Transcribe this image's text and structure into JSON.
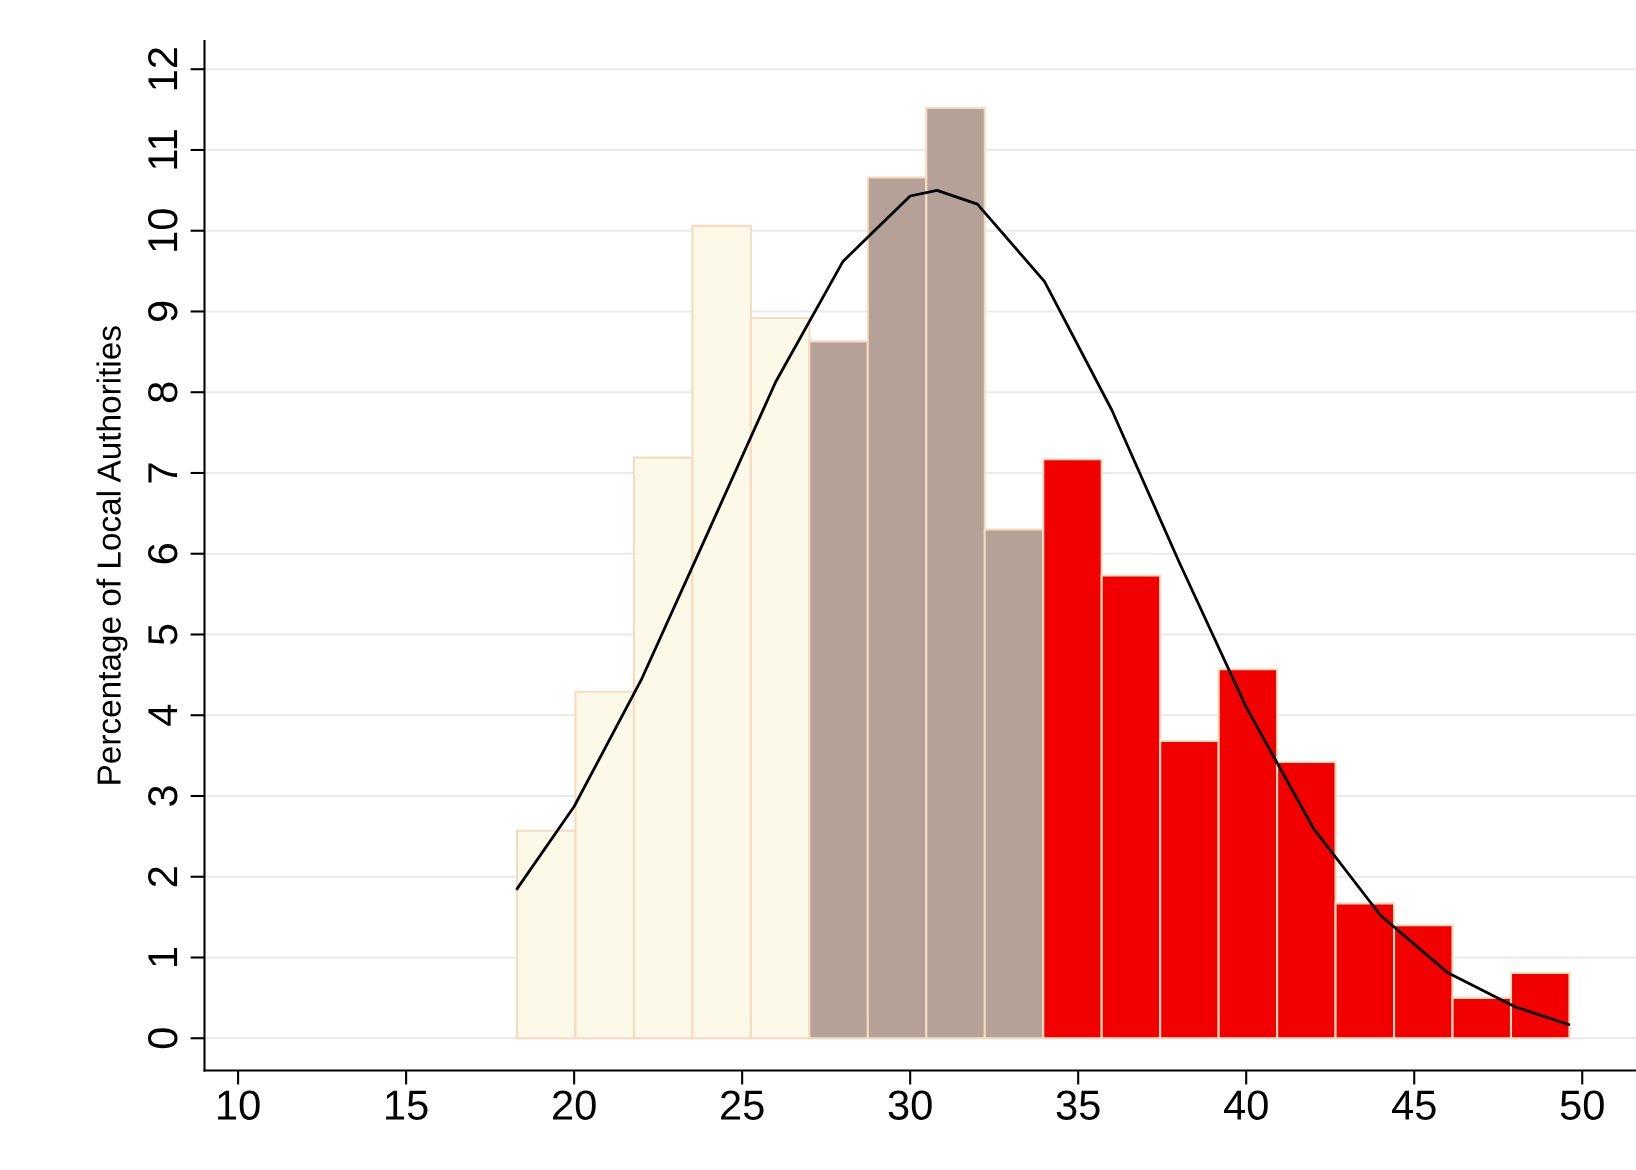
{
  "chart_data": {
    "type": "histogram",
    "ylabel": "Percentage of Local Authorities",
    "bins": [
      18.3,
      20.04,
      21.78,
      23.52,
      25.26,
      27.0,
      28.74,
      30.48,
      32.22,
      33.96,
      35.7,
      37.44,
      39.18,
      40.92,
      42.66,
      44.4,
      46.14,
      47.88,
      49.62
    ],
    "series": [
      {
        "values": [
          2.57,
          4.29,
          7.19,
          10.06,
          8.92,
          8.63,
          10.66,
          11.52,
          6.3,
          7.17,
          5.73,
          3.68,
          4.57,
          3.42,
          1.67,
          1.4,
          0.5,
          0.81
        ],
        "colors": [
          "#fdf9e8",
          "#fdf9e8",
          "#fdf9e8",
          "#fdf9e8",
          "#fdf9e8",
          "#b5a197",
          "#b5a197",
          "#b5a197",
          "#b5a197",
          "#f20000",
          "#f20000",
          "#f20000",
          "#f20000",
          "#f20000",
          "#f20000",
          "#f20000",
          "#f20000",
          "#f20000"
        ]
      },
      {
        "type": "line",
        "color": "#000000",
        "x": [
          18.3,
          20,
          22,
          24,
          26,
          28,
          30,
          30.8,
          32,
          34,
          36,
          38,
          40,
          42,
          44,
          46,
          48,
          49.6
        ],
        "values": [
          1.85,
          2.87,
          4.44,
          6.28,
          8.13,
          9.62,
          10.43,
          10.5,
          10.33,
          9.37,
          7.78,
          5.9,
          4.1,
          2.6,
          1.52,
          0.81,
          0.39,
          0.17
        ]
      }
    ],
    "xlim": [
      9,
      51.6
    ],
    "ylim": [
      -0.4,
      12.35
    ],
    "xticks": [
      10,
      15,
      20,
      25,
      30,
      35,
      40,
      45,
      50
    ],
    "yticks": [
      0,
      1,
      2,
      3,
      4,
      5,
      6,
      7,
      8,
      9,
      10,
      11,
      12
    ],
    "grid": "y",
    "legend": false
  }
}
